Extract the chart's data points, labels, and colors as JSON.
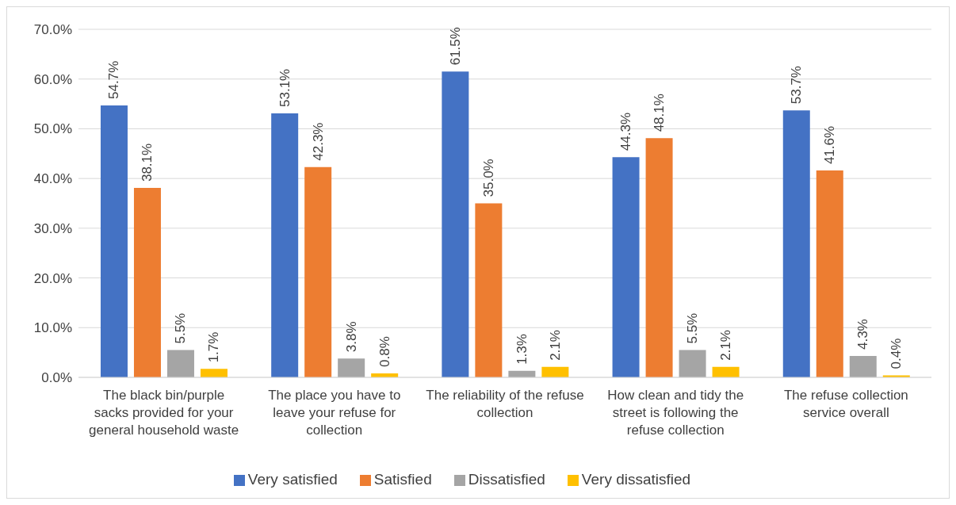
{
  "chart_data": {
    "type": "bar",
    "categories": [
      "The black bin/purple sacks provided for your general household waste",
      "The place you have to leave your refuse for collection",
      "The reliability of the refuse collection",
      "How clean and tidy the street is following the refuse collection",
      "The refuse collection service overall"
    ],
    "series": [
      {
        "name": "Very satisfied",
        "color": "#4472c4",
        "values": [
          54.7,
          53.1,
          61.5,
          44.3,
          53.7
        ],
        "value_labels": [
          "54.7%",
          "53.1%",
          "61.5%",
          "44.3%",
          "53.7%"
        ]
      },
      {
        "name": "Satisfied",
        "color": "#ed7d31",
        "values": [
          38.1,
          42.3,
          35.0,
          48.1,
          41.6
        ],
        "value_labels": [
          "38.1%",
          "42.3%",
          "35.0%",
          "48.1%",
          "41.6%"
        ]
      },
      {
        "name": "Dissatisfied",
        "color": "#a5a5a5",
        "values": [
          5.5,
          3.8,
          1.3,
          5.5,
          4.3
        ],
        "value_labels": [
          "5.5%",
          "3.8%",
          "1.3%",
          "5.5%",
          "4.3%"
        ]
      },
      {
        "name": "Very dissatisfied",
        "color": "#ffc000",
        "values": [
          1.7,
          0.8,
          2.1,
          2.1,
          0.4
        ],
        "value_labels": [
          "1.7%",
          "0.8%",
          "2.1%",
          "2.1%",
          "0.4%"
        ]
      }
    ],
    "ylim": [
      0,
      70
    ],
    "yticks": [
      {
        "value": 0,
        "label": "0.0%"
      },
      {
        "value": 10,
        "label": "10.0%"
      },
      {
        "value": 20,
        "label": "20.0%"
      },
      {
        "value": 30,
        "label": "30.0%"
      },
      {
        "value": 40,
        "label": "40.0%"
      },
      {
        "value": 50,
        "label": "50.0%"
      },
      {
        "value": 60,
        "label": "60.0%"
      },
      {
        "value": 70,
        "label": "70.0%"
      }
    ],
    "grid": "y",
    "legend": "bottom"
  }
}
